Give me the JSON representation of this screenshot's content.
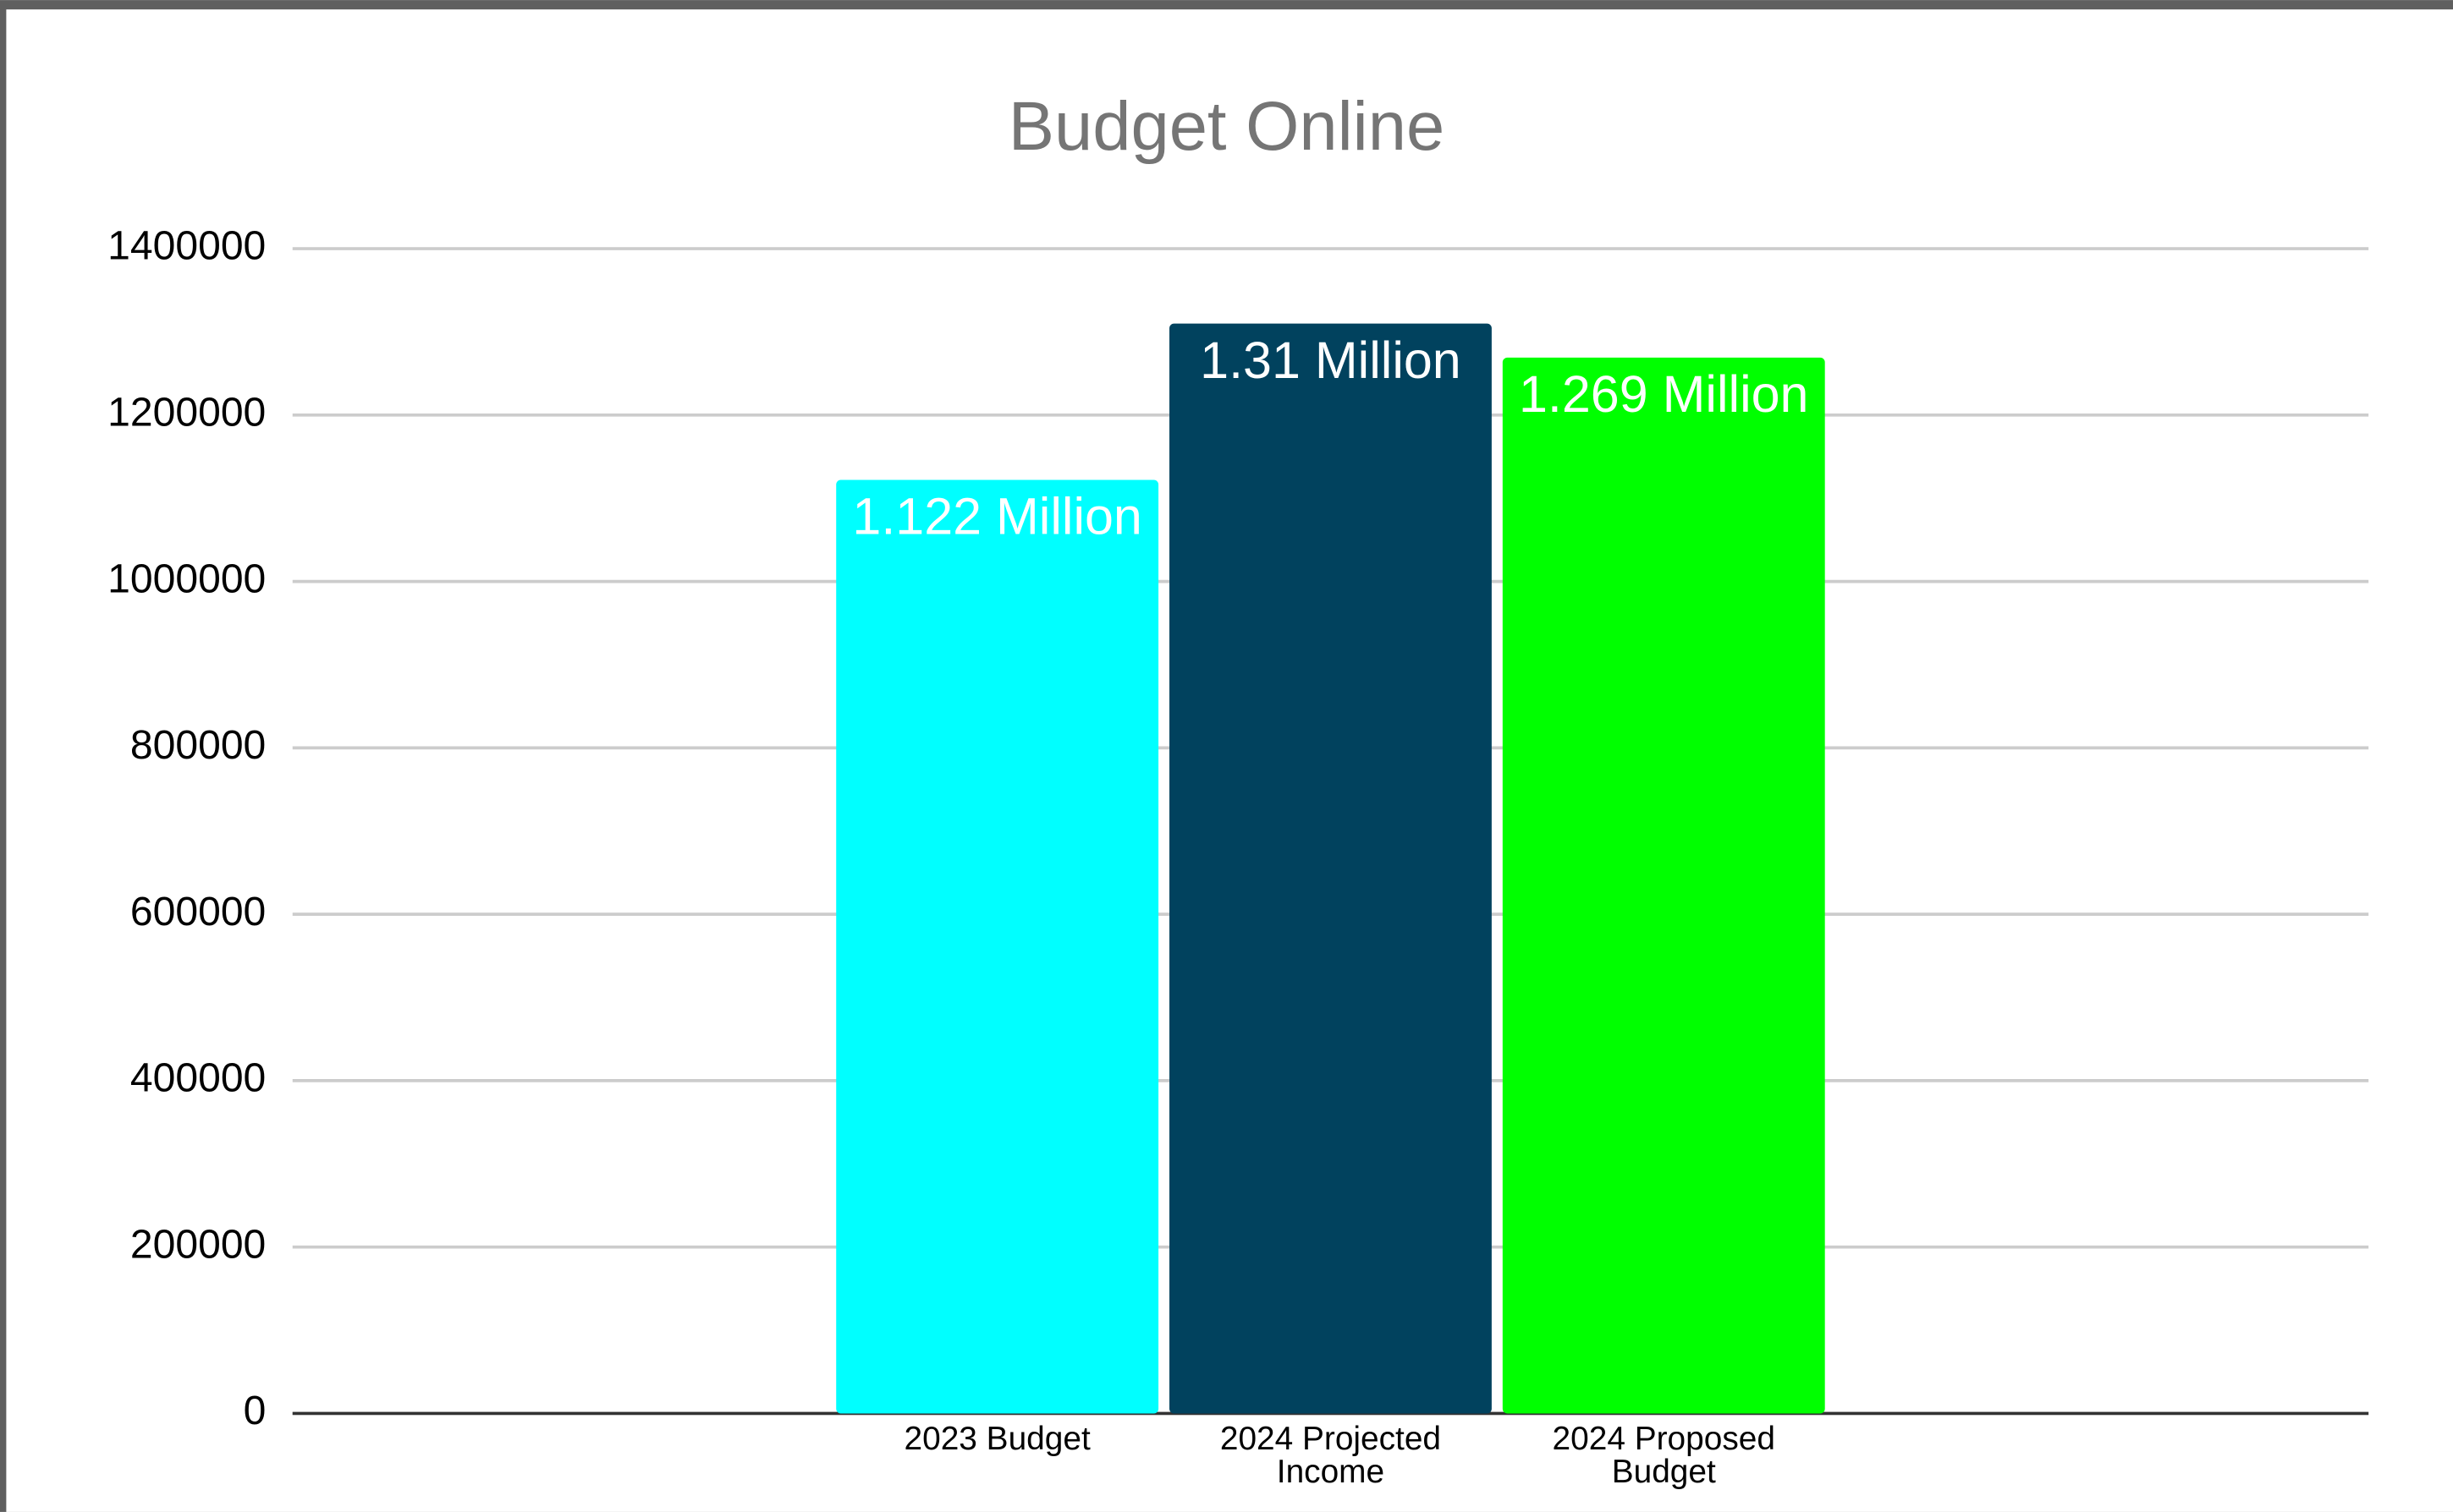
{
  "chart_data": {
    "type": "bar",
    "title": "Budget Online",
    "categories": [
      "2023 Budget",
      "2024 Projected Income",
      "2024 Proposed Budget"
    ],
    "values": [
      1122000,
      1310000,
      1269000
    ],
    "value_labels": [
      "1.122 Million",
      "1.31 Million",
      "1.269 Million"
    ],
    "colors": [
      "#00ffff",
      "#01425e",
      "#00ff00"
    ],
    "ylim": [
      0,
      1400000
    ],
    "yticks": [
      0,
      200000,
      400000,
      600000,
      800000,
      1000000,
      1200000,
      1400000
    ],
    "grid": true
  }
}
